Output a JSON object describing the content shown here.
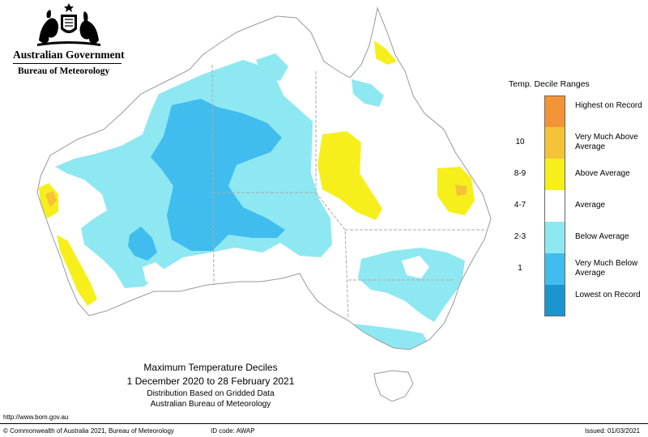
{
  "header": {
    "organisation": "Australian Government",
    "bureau": "Bureau of Meteorology",
    "crest": "commonwealth-coat-of-arms-icon"
  },
  "map": {
    "region": "Australia",
    "legend": {
      "title": "Temp. Decile Ranges",
      "categories": [
        {
          "label": "Highest on Record",
          "range": "",
          "color": "#f29436"
        },
        {
          "label": "Very Much Above Average",
          "range": "10",
          "color": "#f6c237"
        },
        {
          "label": "Above Average",
          "range": "8-9",
          "color": "#f6ef1c"
        },
        {
          "label": "Average",
          "range": "4-7",
          "color": "#ffffff"
        },
        {
          "label": "Below Average",
          "range": "2-3",
          "color": "#8ee8f2"
        },
        {
          "label": "Very Much Below Average",
          "range": "1",
          "color": "#40bdee"
        },
        {
          "label": "Lowest on Record",
          "range": "",
          "color": "#1c95cf"
        }
      ]
    }
  },
  "caption": {
    "title": "Maximum Temperature Deciles",
    "dates": "1 December 2020 to 28 February 2021",
    "subtitle1": "Distribution Based on Gridded Data",
    "subtitle2": "Australian Bureau of Meteorology"
  },
  "footer": {
    "url": "http://www.bom.gov.au",
    "copyright": "© Commonwealth of Australia 2021, Bureau of Meteorology",
    "id_code": "ID code: AWAP",
    "issued": "Issued: 01/03/2021"
  }
}
